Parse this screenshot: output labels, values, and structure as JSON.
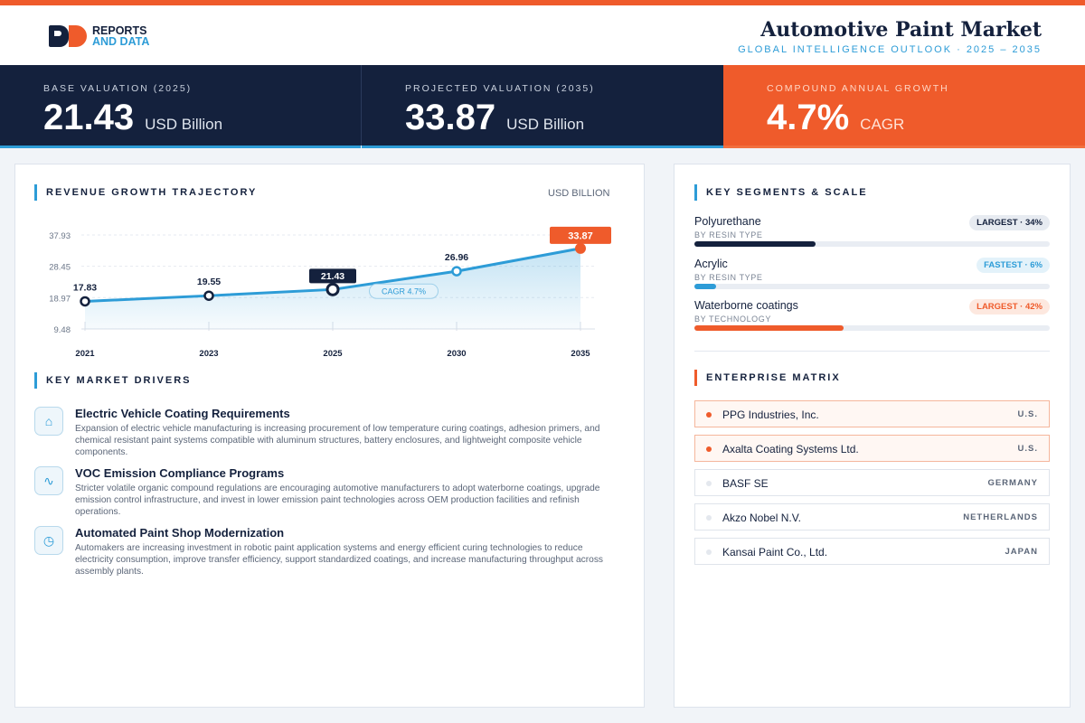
{
  "header": {
    "brand_line1": "REPORTS",
    "brand_line2": "AND DATA",
    "title": "Automotive Paint Market",
    "subtitle": "GLOBAL INTELLIGENCE OUTLOOK  ·  2025 – 2035"
  },
  "kpis": [
    {
      "label": "BASE VALUATION (2025)",
      "value": "21.43",
      "unit": "USD Billion"
    },
    {
      "label": "PROJECTED VALUATION (2035)",
      "value": "33.87",
      "unit": "USD Billion"
    },
    {
      "label": "COMPOUND ANNUAL GROWTH",
      "value": "4.7%",
      "unit": "CAGR"
    }
  ],
  "revenue": {
    "section_title": "REVENUE GROWTH TRAJECTORY",
    "unit_label": "USD BILLION",
    "cagr_label": "CAGR 4.7%"
  },
  "chart_data": {
    "type": "line",
    "title": "REVENUE GROWTH TRAJECTORY",
    "ylabel": "USD BILLION",
    "categories": [
      "2021",
      "2023",
      "2025",
      "2030",
      "2035"
    ],
    "values": [
      17.83,
      19.55,
      21.43,
      26.96,
      33.87
    ],
    "value_labels": [
      "17.83",
      "19.55",
      "21.43",
      "26.96",
      "33.87"
    ],
    "yticks": [
      "37.93",
      "28.45",
      "18.97",
      "9.48"
    ],
    "ytick_values": [
      37.93,
      28.45,
      18.97,
      9.48
    ],
    "ylim": [
      9.48,
      37.93
    ],
    "grid": true,
    "highlight_index": 4,
    "colors": {
      "line": "#2d9cd7",
      "marker": "#14213d",
      "highlight": "#ef5b2b"
    }
  },
  "drivers": {
    "section_title": "KEY MARKET DRIVERS",
    "items": [
      {
        "icon": "home-icon",
        "glyph": "⌂",
        "title": "Electric Vehicle Coating Requirements",
        "text": "Expansion of electric vehicle manufacturing is increasing procurement of low temperature curing coatings, adhesion primers, and chemical resistant paint systems compatible with aluminum structures, battery enclosures, and lightweight composite vehicle components."
      },
      {
        "icon": "activity-icon",
        "glyph": "∿",
        "title": "VOC Emission Compliance Programs",
        "text": "Stricter volatile organic compound regulations are encouraging automotive manufacturers to adopt waterborne coatings, upgrade emission control infrastructure, and invest in lower emission paint technologies across OEM production facilities and refinish operations."
      },
      {
        "icon": "clock-icon",
        "glyph": "◷",
        "title": "Automated Paint Shop Modernization",
        "text": "Automakers are increasing investment in robotic paint application systems and energy efficient curing technologies to reduce electricity consumption, improve transfer efficiency, support standardized coatings, and increase manufacturing throughput across assembly plants."
      }
    ]
  },
  "segments": {
    "section_title": "KEY SEGMENTS & SCALE",
    "items": [
      {
        "name": "Polyurethane",
        "sub": "BY RESIN TYPE",
        "badge": "LARGEST · 34%",
        "share": 34,
        "color": "#14213d"
      },
      {
        "name": "Acrylic",
        "sub": "BY RESIN TYPE",
        "badge": "FASTEST · 6%",
        "share": 6,
        "color": "#2d9cd7"
      },
      {
        "name": "Waterborne coatings",
        "sub": "BY TECHNOLOGY",
        "badge": "LARGEST · 42%",
        "share": 42,
        "color": "#ef5b2b"
      }
    ]
  },
  "enterprise": {
    "section_title": "ENTERPRISE MATRIX",
    "items": [
      {
        "name": "PPG Industries, Inc.",
        "country": "U.S."
      },
      {
        "name": "Axalta Coating Systems Ltd.",
        "country": "U.S."
      },
      {
        "name": "BASF SE",
        "country": "GERMANY"
      },
      {
        "name": "Akzo Nobel N.V.",
        "country": "NETHERLANDS"
      },
      {
        "name": "Kansai Paint Co., Ltd.",
        "country": "JAPAN"
      }
    ]
  }
}
